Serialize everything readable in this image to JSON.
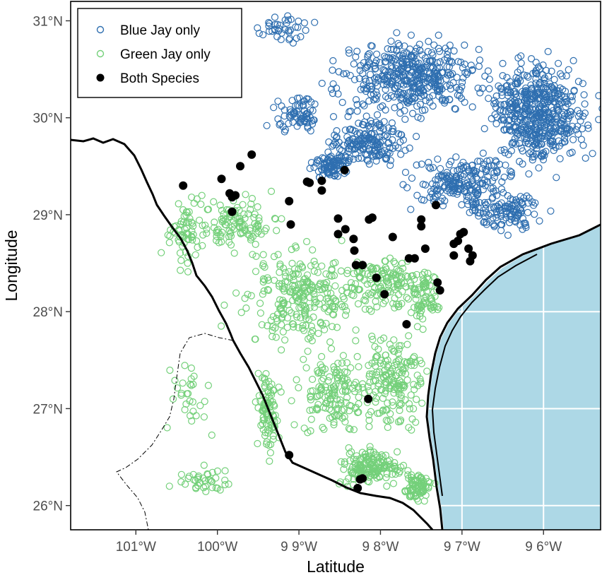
{
  "chart_data": {
    "type": "scatter",
    "xlabel": "Latitude",
    "ylabel": "Longitude",
    "xlim": [
      -101.8,
      -95.3
    ],
    "ylim": [
      25.75,
      31.2
    ],
    "x_ticks": [
      {
        "value": -101,
        "label": "101°W"
      },
      {
        "value": -100,
        "label": "100°W"
      },
      {
        "value": -99,
        "label": "9 9°W"
      },
      {
        "value": -98,
        "label": "9 8°W"
      },
      {
        "value": -97,
        "label": "9 7°W"
      },
      {
        "value": -96,
        "label": "9 6°W"
      }
    ],
    "y_ticks": [
      {
        "value": 26,
        "label": "26°N"
      },
      {
        "value": 27,
        "label": "27°N"
      },
      {
        "value": 28,
        "label": "28°N"
      },
      {
        "value": 29,
        "label": "29°N"
      },
      {
        "value": 30,
        "label": "30°N"
      },
      {
        "value": 31,
        "label": "31°N"
      }
    ],
    "grid": true,
    "legend_position": "top-left",
    "series": [
      {
        "name": "Blue Jay only",
        "color": "#2f6fb0",
        "marker": "open-circle"
      },
      {
        "name": "Green Jay only",
        "color": "#74d07a",
        "marker": "open-circle"
      },
      {
        "name": "Both Species",
        "color": "#000000",
        "marker": "filled-circle",
        "points": [
          [
            -100.42,
            29.3
          ],
          [
            -99.95,
            29.37
          ],
          [
            -99.85,
            29.22
          ],
          [
            -99.78,
            29.2
          ],
          [
            -99.82,
            29.18
          ],
          [
            -99.72,
            29.5
          ],
          [
            -99.58,
            29.62
          ],
          [
            -99.82,
            29.03
          ],
          [
            -99.12,
            29.14
          ],
          [
            -99.1,
            28.9
          ],
          [
            -98.9,
            29.34
          ],
          [
            -98.87,
            29.33
          ],
          [
            -98.72,
            29.35
          ],
          [
            -98.72,
            29.25
          ],
          [
            -98.44,
            29.46
          ],
          [
            -98.52,
            28.96
          ],
          [
            -98.43,
            28.85
          ],
          [
            -98.52,
            28.8
          ],
          [
            -98.33,
            28.75
          ],
          [
            -98.32,
            28.63
          ],
          [
            -98.22,
            28.48
          ],
          [
            -98.3,
            28.48
          ],
          [
            -98.14,
            28.95
          ],
          [
            -98.1,
            28.97
          ],
          [
            -97.85,
            28.77
          ],
          [
            -97.95,
            28.18
          ],
          [
            -98.05,
            28.35
          ],
          [
            -97.5,
            28.88
          ],
          [
            -97.5,
            28.95
          ],
          [
            -97.32,
            29.1
          ],
          [
            -97.45,
            28.65
          ],
          [
            -97.58,
            28.55
          ],
          [
            -97.65,
            28.55
          ],
          [
            -97.3,
            28.3
          ],
          [
            -97.27,
            28.22
          ],
          [
            -97.1,
            28.7
          ],
          [
            -97.05,
            28.73
          ],
          [
            -97.02,
            28.8
          ],
          [
            -96.98,
            28.82
          ],
          [
            -96.92,
            28.65
          ],
          [
            -96.87,
            28.58
          ],
          [
            -96.9,
            28.52
          ],
          [
            -97.1,
            28.58
          ],
          [
            -97.68,
            27.87
          ],
          [
            -98.15,
            27.1
          ],
          [
            -99.12,
            26.52
          ],
          [
            -98.22,
            26.28
          ],
          [
            -98.25,
            26.27
          ],
          [
            -98.28,
            26.18
          ]
        ]
      }
    ]
  },
  "basemap": {
    "water_color": "#add8e6",
    "land_color": "#ffffff",
    "border_color": "#000000"
  }
}
